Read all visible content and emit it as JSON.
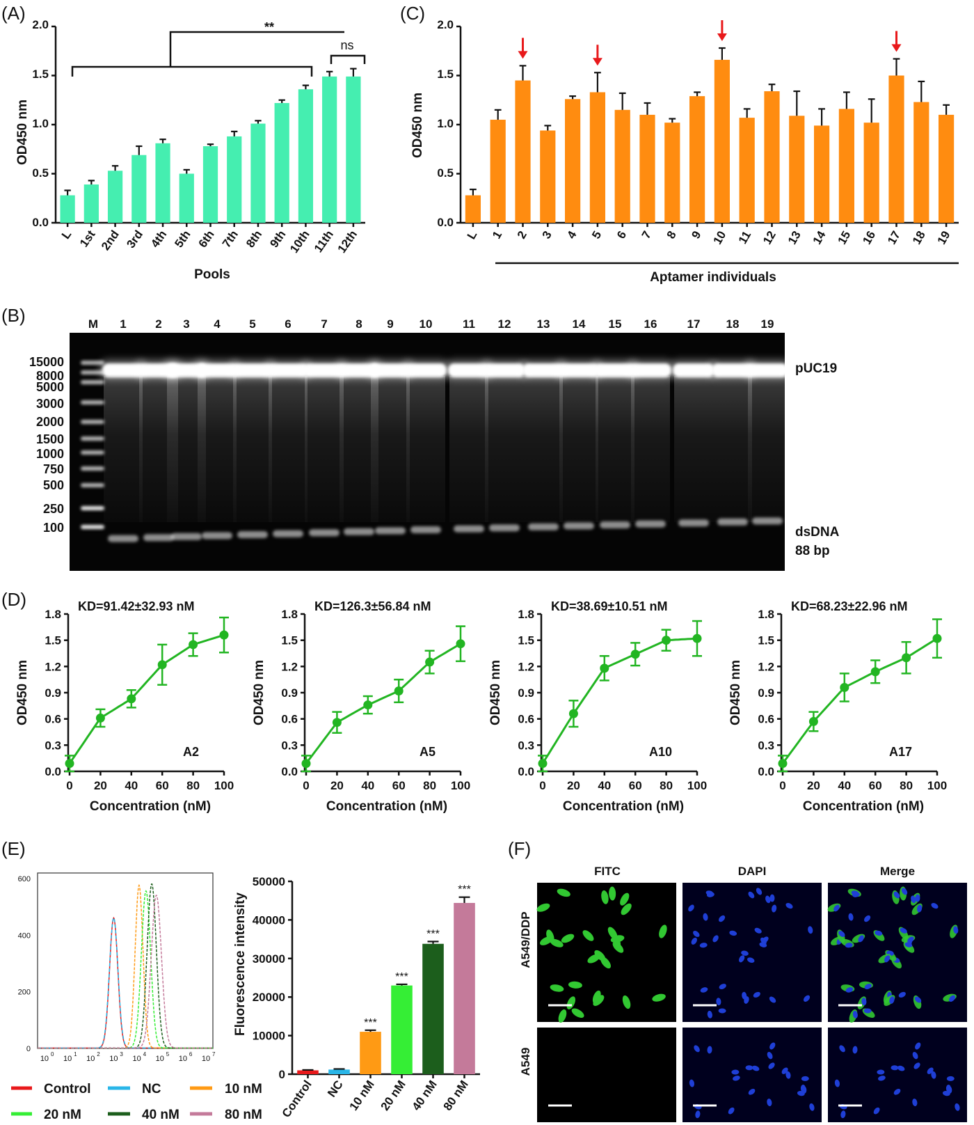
{
  "panels": {
    "A": "(A)",
    "B": "(B)",
    "C": "(C)",
    "D": "(D)",
    "E": "(E)",
    "F": "(F)"
  },
  "colors": {
    "teal": "#45eeb0",
    "orange": "#ff8c10",
    "green_curve": "#22b522",
    "red_arrow": "#e8191b",
    "control": "#e8191b",
    "nc": "#29b6e8",
    "c10": "#ff9a14",
    "c20": "#35ee35",
    "c40": "#1c5e1c",
    "c80": "#c47a9a"
  },
  "chart_data": [
    {
      "id": "A",
      "type": "bar",
      "ylabel": "OD450 nm",
      "xlabel": "Pools",
      "ylim": [
        0,
        2.0
      ],
      "yticks": [
        "0.0",
        "0.5",
        "1.0",
        "1.5",
        "2.0"
      ],
      "categories": [
        "L",
        "1st",
        "2nd",
        "3rd",
        "4th",
        "5th",
        "6th",
        "7th",
        "8th",
        "9th",
        "10th",
        "11th",
        "12th"
      ],
      "values": [
        0.28,
        0.39,
        0.53,
        0.69,
        0.81,
        0.5,
        0.78,
        0.88,
        1.01,
        1.22,
        1.36,
        1.49,
        1.49
      ],
      "errors": [
        0.05,
        0.04,
        0.05,
        0.09,
        0.04,
        0.04,
        0.02,
        0.05,
        0.03,
        0.03,
        0.04,
        0.05,
        0.08
      ],
      "annotations": [
        "**",
        "ns"
      ]
    },
    {
      "id": "C",
      "type": "bar",
      "ylabel": "OD450 nm",
      "xlabel": "Aptamer individuals",
      "ylim": [
        0,
        2.0
      ],
      "yticks": [
        "0.0",
        "0.5",
        "1.0",
        "1.5",
        "2.0"
      ],
      "categories": [
        "L",
        "1",
        "2",
        "3",
        "4",
        "5",
        "6",
        "7",
        "8",
        "9",
        "10",
        "11",
        "12",
        "13",
        "14",
        "15",
        "16",
        "17",
        "18",
        "19"
      ],
      "values": [
        0.28,
        1.05,
        1.45,
        0.94,
        1.26,
        1.33,
        1.15,
        1.1,
        1.02,
        1.29,
        1.66,
        1.07,
        1.34,
        1.09,
        0.99,
        1.16,
        1.02,
        1.5,
        1.23,
        1.1
      ],
      "errors": [
        0.06,
        0.1,
        0.15,
        0.05,
        0.03,
        0.2,
        0.17,
        0.12,
        0.04,
        0.04,
        0.12,
        0.09,
        0.07,
        0.25,
        0.17,
        0.17,
        0.24,
        0.17,
        0.21,
        0.1
      ],
      "arrows_at": [
        "2",
        "5",
        "10",
        "17"
      ]
    },
    {
      "id": "D1",
      "type": "scatter",
      "label": "A2",
      "title": "KD=91.42±32.93 nM",
      "xlabel": "Concentration (nM)",
      "ylabel": "OD450 nm",
      "xlim": [
        0,
        100
      ],
      "ylim": [
        0,
        1.8
      ],
      "xticks": [
        "0",
        "20",
        "40",
        "60",
        "80",
        "100"
      ],
      "yticks": [
        "0.0",
        "0.3",
        "0.6",
        "0.9",
        "1.2",
        "1.5",
        "1.8"
      ],
      "x": [
        0,
        20,
        40,
        60,
        80,
        100
      ],
      "y": [
        0.09,
        0.61,
        0.83,
        1.22,
        1.45,
        1.56
      ],
      "errors": [
        0.09,
        0.1,
        0.1,
        0.23,
        0.13,
        0.2
      ]
    },
    {
      "id": "D2",
      "type": "scatter",
      "label": "A5",
      "title": "KD=126.3±56.84 nM",
      "xlabel": "Concentration (nM)",
      "ylabel": "OD450 nm",
      "xlim": [
        0,
        100
      ],
      "ylim": [
        0,
        1.8
      ],
      "xticks": [
        "0",
        "20",
        "40",
        "60",
        "80",
        "100"
      ],
      "yticks": [
        "0.0",
        "0.3",
        "0.6",
        "0.9",
        "1.2",
        "1.5",
        "1.8"
      ],
      "x": [
        0,
        20,
        40,
        60,
        80,
        100
      ],
      "y": [
        0.09,
        0.56,
        0.76,
        0.92,
        1.25,
        1.46
      ],
      "errors": [
        0.09,
        0.12,
        0.1,
        0.13,
        0.13,
        0.2
      ]
    },
    {
      "id": "D3",
      "type": "scatter",
      "label": "A10",
      "title": "KD=38.69±10.51 nM",
      "xlabel": "Concentration (nM)",
      "ylabel": "OD450 nm",
      "xlim": [
        0,
        100
      ],
      "ylim": [
        0,
        1.8
      ],
      "xticks": [
        "0",
        "20",
        "40",
        "60",
        "80",
        "100"
      ],
      "yticks": [
        "0.0",
        "0.3",
        "0.6",
        "0.9",
        "1.2",
        "1.5",
        "1.8"
      ],
      "x": [
        0,
        20,
        40,
        60,
        80,
        100
      ],
      "y": [
        0.09,
        0.66,
        1.18,
        1.34,
        1.5,
        1.52
      ],
      "errors": [
        0.09,
        0.15,
        0.14,
        0.13,
        0.12,
        0.2
      ]
    },
    {
      "id": "D4",
      "type": "scatter",
      "label": "A17",
      "title": "KD=68.23±22.96 nM",
      "xlabel": "Concentration (nM)",
      "ylabel": "OD450 nm",
      "xlim": [
        0,
        100
      ],
      "ylim": [
        0,
        1.8
      ],
      "xticks": [
        "0",
        "20",
        "40",
        "60",
        "80",
        "100"
      ],
      "yticks": [
        "0.0",
        "0.3",
        "0.6",
        "0.9",
        "1.2",
        "1.5",
        "1.8"
      ],
      "x": [
        0,
        20,
        40,
        60,
        80,
        100
      ],
      "y": [
        0.09,
        0.57,
        0.96,
        1.14,
        1.3,
        1.52
      ],
      "errors": [
        0.09,
        0.11,
        0.16,
        0.13,
        0.18,
        0.22
      ]
    },
    {
      "id": "E1",
      "type": "line",
      "yticks": [
        "0",
        "200",
        "400",
        "600"
      ],
      "xticks": [
        "10",
        "10",
        "10",
        "10",
        "10",
        "10",
        "10",
        "10"
      ],
      "xtick_exp": [
        "0",
        "1",
        "2",
        "3",
        "4",
        "5",
        "6",
        "7"
      ],
      "ylim": [
        0,
        620
      ],
      "xlim_log": [
        -0.3,
        7.3
      ],
      "series": [
        {
          "name": "Control",
          "peak_log": 3.0,
          "peak": 460,
          "sigma": 0.18
        },
        {
          "name": "NC",
          "peak_log": 3.0,
          "peak": 460,
          "sigma": 0.185
        },
        {
          "name": "10 nM",
          "peak_log": 4.1,
          "peak": 575,
          "sigma": 0.17
        },
        {
          "name": "20 nM",
          "peak_log": 4.4,
          "peak": 555,
          "sigma": 0.2
        },
        {
          "name": "40 nM",
          "peak_log": 4.65,
          "peak": 580,
          "sigma": 0.2
        },
        {
          "name": "80 nM",
          "peak_log": 4.85,
          "peak": 540,
          "sigma": 0.22
        }
      ]
    },
    {
      "id": "E2",
      "type": "bar",
      "ylabel": "Fluorescence intensity",
      "ylim": [
        0,
        50000
      ],
      "yticks": [
        "0",
        "10000",
        "20000",
        "30000",
        "40000",
        "50000"
      ],
      "categories": [
        "Control",
        "NC",
        "10 nM",
        "20 nM",
        "40 nM",
        "80 nM"
      ],
      "values": [
        1000,
        1200,
        11000,
        23000,
        33800,
        44400
      ],
      "errors": [
        100,
        150,
        400,
        300,
        600,
        1500
      ],
      "significance": [
        "",
        "",
        "***",
        "***",
        "***",
        "***"
      ]
    }
  ],
  "gel": {
    "lanes": [
      "M",
      "1",
      "2",
      "3",
      "4",
      "5",
      "6",
      "7",
      "8",
      "9",
      "10",
      "11",
      "12",
      "13",
      "14",
      "15",
      "16",
      "17",
      "18",
      "19"
    ],
    "ladder": [
      "15000",
      "8000",
      "5000",
      "3000",
      "2000",
      "1500",
      "1000",
      "750",
      "500",
      "250",
      "100"
    ],
    "band_labels": {
      "top": "pUC19",
      "bottom_1": "dsDNA",
      "bottom_2": "88 bp"
    }
  },
  "microscopy": {
    "columns": [
      "FITC",
      "DAPI",
      "Merge"
    ],
    "rows": [
      "A549/DDP",
      "A549"
    ]
  }
}
